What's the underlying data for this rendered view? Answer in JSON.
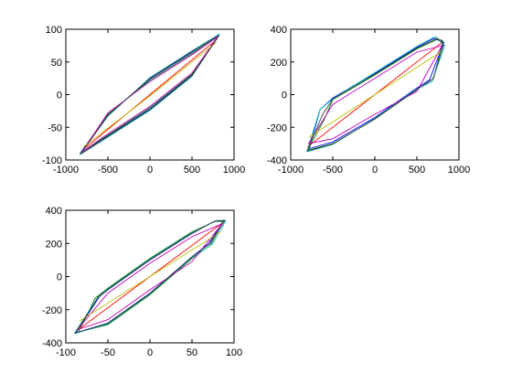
{
  "figure": {
    "background": "#ffffff"
  },
  "chart_data": [
    {
      "type": "line",
      "title": "",
      "xlabel": "",
      "ylabel": "",
      "xlim": [
        -1000,
        1000
      ],
      "ylim": [
        -100,
        100
      ],
      "xticks": [
        -1000,
        -500,
        0,
        500,
        1000
      ],
      "yticks": [
        -100,
        -50,
        0,
        50,
        100
      ],
      "xtick_labels": [
        "-1000",
        "-500",
        "0",
        "500",
        "1000"
      ],
      "ytick_labels": [
        "-100",
        "-50",
        "0",
        "50",
        "100"
      ],
      "grid": false,
      "series": [
        {
          "color": "#0000ff",
          "x": [
            -830,
            -500,
            0,
            500,
            820,
            500,
            0,
            -500,
            -830
          ],
          "y": [
            -90,
            -63,
            -22,
            30,
            92,
            65,
            24,
            -31,
            -90
          ]
        },
        {
          "color": "#008000",
          "x": [
            -820,
            -500,
            0,
            500,
            815,
            500,
            0,
            -500,
            -820
          ],
          "y": [
            -89,
            -62,
            -20,
            31,
            90,
            63,
            22,
            -30,
            -89
          ]
        },
        {
          "color": "#ff0000",
          "x": [
            -800,
            0,
            800
          ],
          "y": [
            -85,
            0,
            85
          ]
        },
        {
          "color": "#00bfbf",
          "x": [
            -835,
            -500,
            0,
            500,
            830,
            500,
            0,
            -500,
            -835
          ],
          "y": [
            -92,
            -65,
            -24,
            28,
            93,
            67,
            26,
            -33,
            -92
          ]
        },
        {
          "color": "#bf00bf",
          "x": [
            -810,
            -500,
            0,
            500,
            810,
            500,
            0,
            -500,
            -810
          ],
          "y": [
            -88,
            -60,
            -18,
            33,
            89,
            61,
            20,
            -28,
            -88
          ]
        },
        {
          "color": "#bfbf00",
          "x": [
            -790,
            0,
            790
          ],
          "y": [
            -80,
            -2,
            80
          ]
        },
        {
          "color": "#404040",
          "x": [
            -825,
            -500,
            0,
            500,
            825,
            500,
            0,
            -500,
            -825
          ],
          "y": [
            -91,
            -64,
            -23,
            29,
            91,
            66,
            25,
            -32,
            -91
          ]
        }
      ]
    },
    {
      "type": "line",
      "title": "",
      "xlabel": "",
      "ylabel": "",
      "xlim": [
        -1000,
        1000
      ],
      "ylim": [
        -400,
        400
      ],
      "xticks": [
        -1000,
        -500,
        0,
        500,
        1000
      ],
      "yticks": [
        -400,
        -200,
        0,
        200,
        400
      ],
      "xtick_labels": [
        "-1000",
        "-500",
        "0",
        "500",
        "1000"
      ],
      "ytick_labels": [
        "-400",
        "-200",
        "0",
        "200",
        "400"
      ],
      "grid": false,
      "series": [
        {
          "color": "#0000ff",
          "x": [
            -780,
            -650,
            -500,
            0,
            500,
            700,
            820,
            650,
            500,
            0,
            -500,
            -780
          ],
          "y": [
            -330,
            -90,
            -20,
            130,
            290,
            345,
            320,
            90,
            40,
            -140,
            -290,
            -330
          ]
        },
        {
          "color": "#008000",
          "x": [
            -800,
            -600,
            -500,
            0,
            500,
            750,
            810,
            700,
            500,
            0,
            -500,
            -800
          ],
          "y": [
            -340,
            -150,
            -30,
            120,
            280,
            340,
            330,
            100,
            30,
            -150,
            -300,
            -340
          ]
        },
        {
          "color": "#ff0000",
          "x": [
            -800,
            0,
            800
          ],
          "y": [
            -320,
            0,
            320
          ]
        },
        {
          "color": "#00bfbf",
          "x": [
            -810,
            -650,
            -500,
            0,
            500,
            720,
            830,
            680,
            500,
            0,
            -500,
            -810
          ],
          "y": [
            -350,
            -90,
            -25,
            135,
            295,
            355,
            300,
            80,
            35,
            -145,
            -305,
            -350
          ]
        },
        {
          "color": "#bf00bf",
          "x": [
            -790,
            -500,
            0,
            500,
            800,
            500,
            0,
            -500,
            -790
          ],
          "y": [
            -300,
            -60,
            100,
            260,
            300,
            20,
            -120,
            -270,
            -300
          ]
        },
        {
          "color": "#bfbf00",
          "x": [
            -780,
            0,
            780
          ],
          "y": [
            -260,
            0,
            260
          ]
        },
        {
          "color": "#404040",
          "x": [
            -805,
            -620,
            -500,
            0,
            500,
            740,
            820,
            690,
            500,
            0,
            -500,
            -805
          ],
          "y": [
            -345,
            -120,
            -28,
            125,
            285,
            345,
            310,
            95,
            32,
            -148,
            -302,
            -345
          ]
        }
      ]
    },
    {
      "type": "line",
      "title": "",
      "xlabel": "",
      "ylabel": "",
      "xlim": [
        -100,
        100
      ],
      "ylim": [
        -400,
        400
      ],
      "xticks": [
        -100,
        -50,
        0,
        50,
        100
      ],
      "yticks": [
        -400,
        -200,
        0,
        200,
        400
      ],
      "xtick_labels": [
        "-100",
        "-50",
        "0",
        "50",
        "100"
      ],
      "ytick_labels": [
        "-400",
        "-200",
        "0",
        "200",
        "400"
      ],
      "grid": false,
      "series": [
        {
          "color": "#0000ff",
          "x": [
            -88,
            -60,
            -50,
            0,
            50,
            75,
            88,
            70,
            50,
            0,
            -50,
            -88
          ],
          "y": [
            -340,
            -120,
            -80,
            100,
            260,
            330,
            340,
            200,
            120,
            -100,
            -280,
            -340
          ]
        },
        {
          "color": "#008000",
          "x": [
            -85,
            -65,
            -50,
            0,
            50,
            78,
            87,
            72,
            50,
            0,
            -50,
            -85
          ],
          "y": [
            -335,
            -130,
            -70,
            110,
            270,
            335,
            330,
            190,
            110,
            -110,
            -290,
            -335
          ]
        },
        {
          "color": "#ff0000",
          "x": [
            -85,
            0,
            85
          ],
          "y": [
            -320,
            0,
            320
          ]
        },
        {
          "color": "#00bfbf",
          "x": [
            -90,
            -62,
            -50,
            0,
            50,
            80,
            90,
            74,
            50,
            0,
            -50,
            -90
          ],
          "y": [
            -345,
            -125,
            -75,
            105,
            265,
            340,
            335,
            195,
            115,
            -105,
            -285,
            -345
          ]
        },
        {
          "color": "#bf00bf",
          "x": [
            -86,
            -50,
            0,
            50,
            86,
            50,
            0,
            -50,
            -86
          ],
          "y": [
            -320,
            -100,
            80,
            240,
            320,
            90,
            -80,
            -260,
            -320
          ]
        },
        {
          "color": "#bfbf00",
          "x": [
            -84,
            0,
            84
          ],
          "y": [
            -270,
            0,
            270
          ]
        },
        {
          "color": "#404040",
          "x": [
            -89,
            -61,
            -50,
            0,
            50,
            77,
            89,
            71,
            50,
            0,
            -50,
            -89
          ],
          "y": [
            -342,
            -122,
            -78,
            102,
            262,
            334,
            338,
            198,
            118,
            -102,
            -282,
            -342
          ]
        }
      ]
    }
  ]
}
